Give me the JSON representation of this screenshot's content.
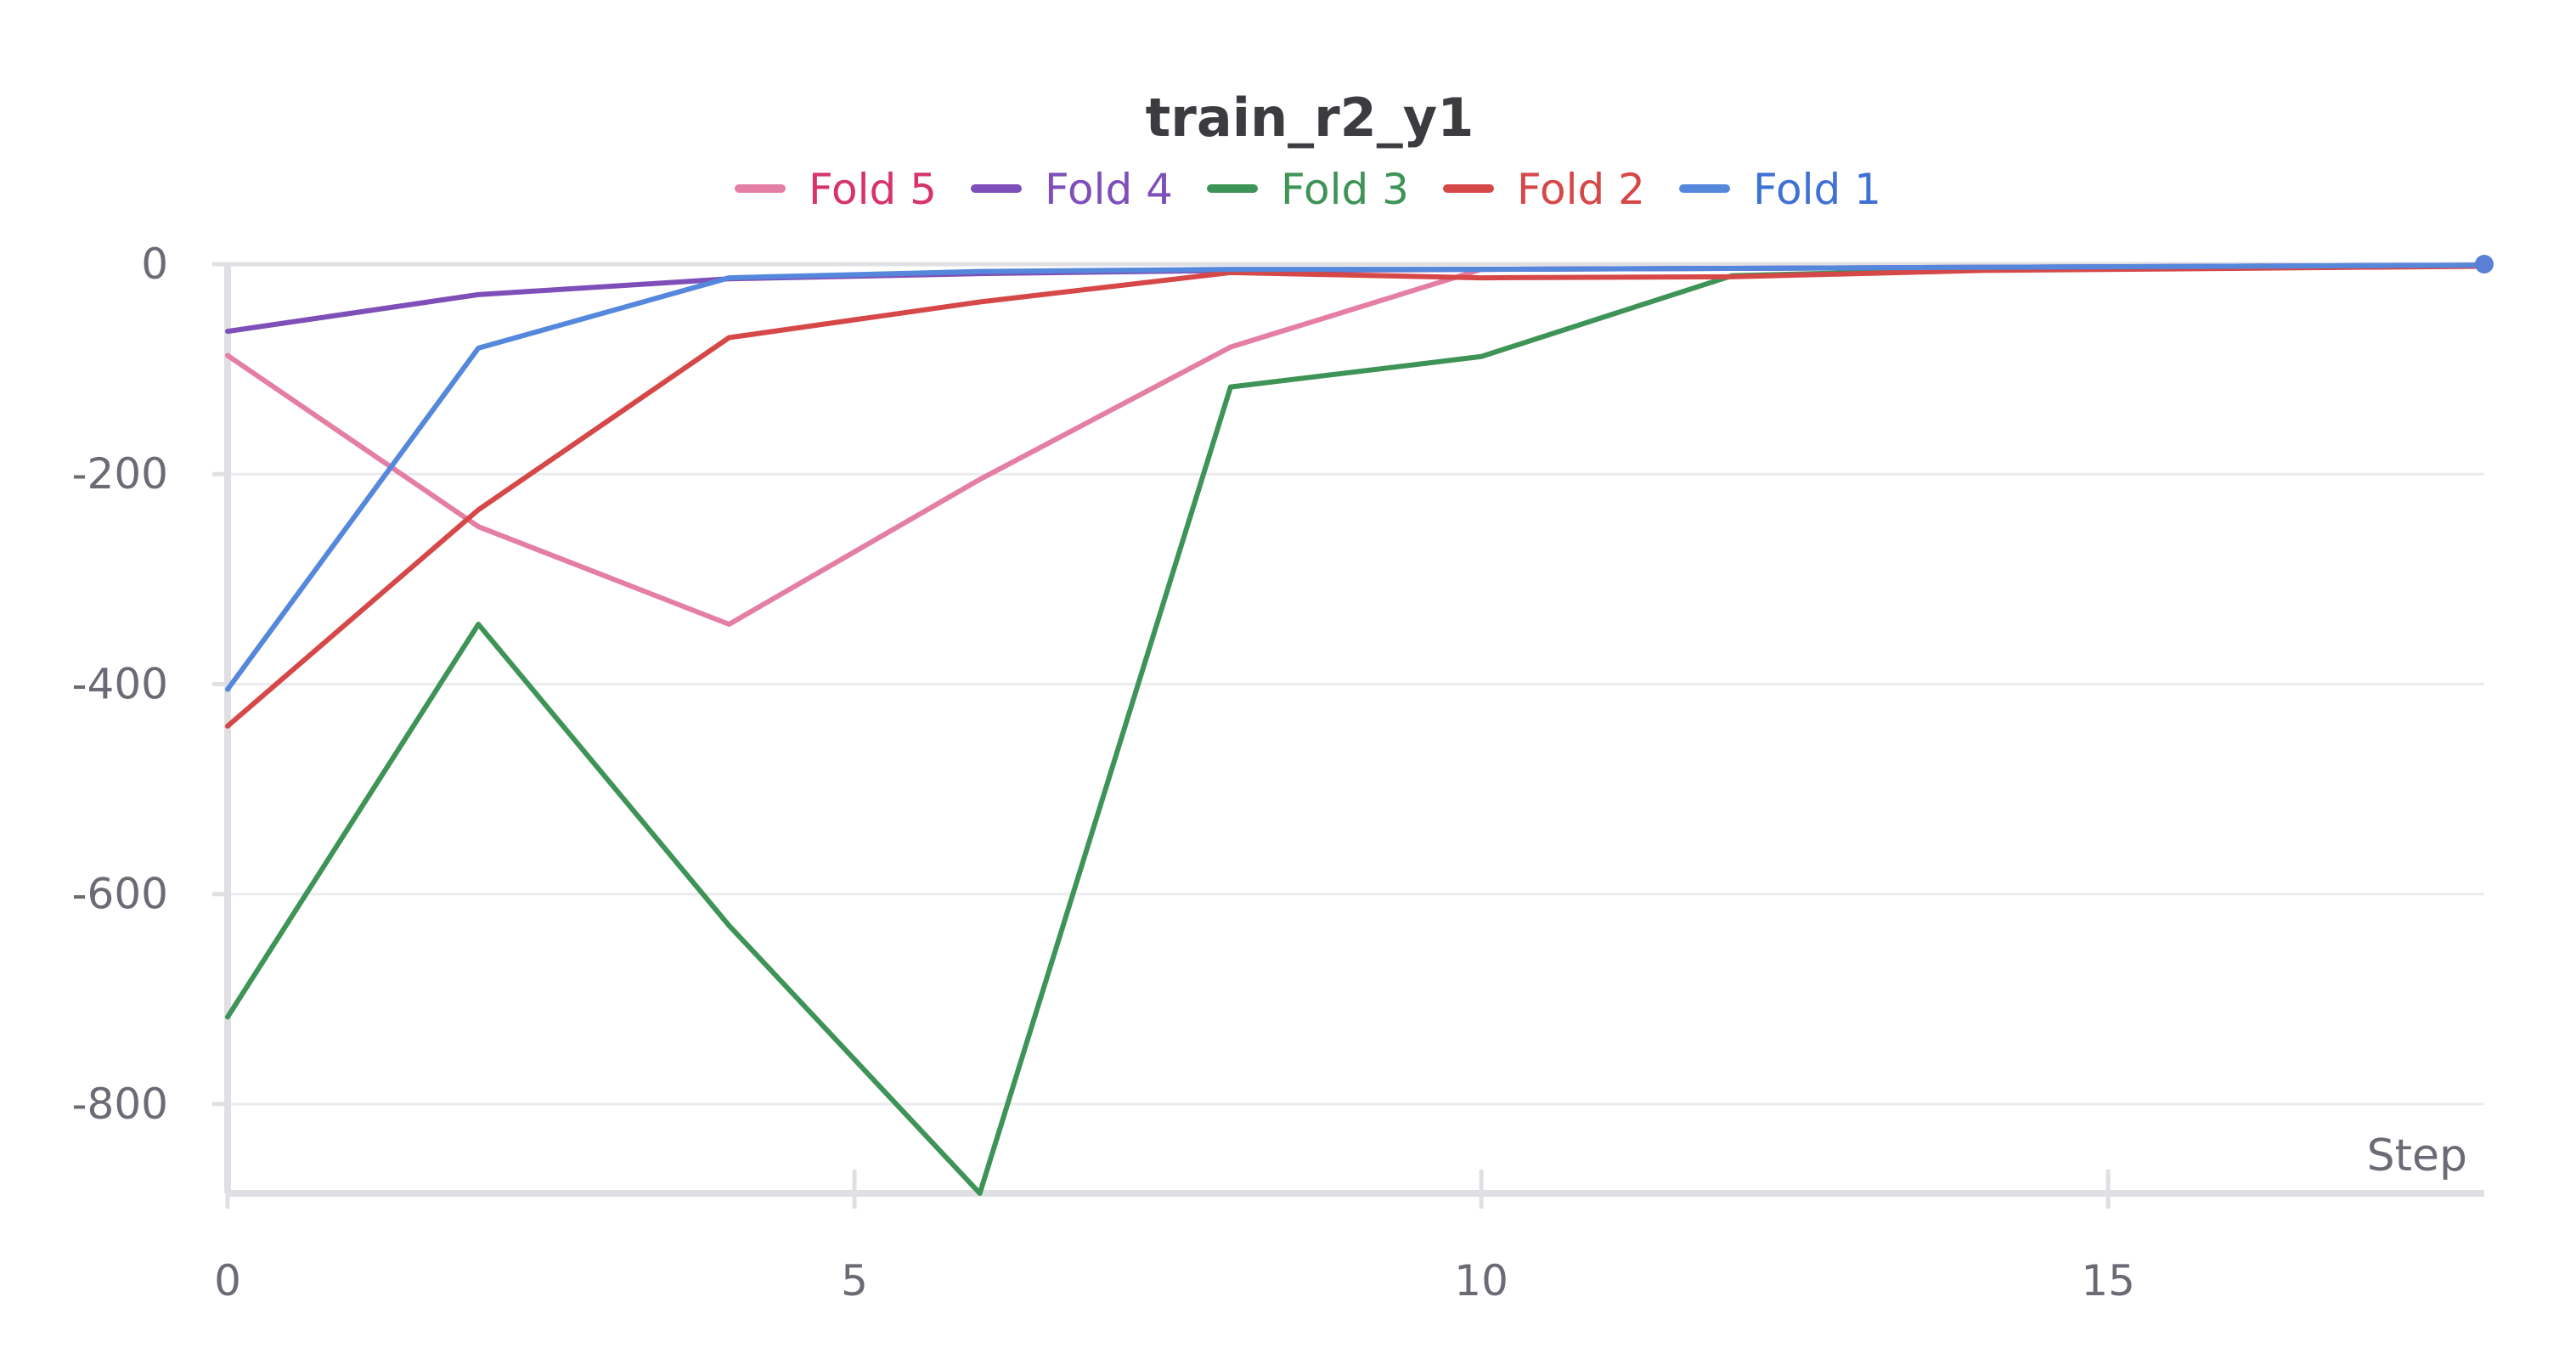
{
  "chart_data": {
    "type": "line",
    "title": "train_r2_y1",
    "xlabel": "Step",
    "ylabel": "",
    "xlim": [
      0,
      18
    ],
    "ylim": [
      -885,
      0
    ],
    "x_ticks": [
      0,
      5,
      10,
      15
    ],
    "y_ticks": [
      0,
      -200,
      -400,
      -600,
      -800
    ],
    "grid": true,
    "legend_position": "top-center",
    "series": [
      {
        "name": "Fold 5",
        "color": "#e47ea4",
        "label_color": "#d6336c",
        "x": [
          0,
          2,
          4,
          6,
          8,
          10,
          12,
          14,
          16,
          18
        ],
        "y": [
          -87,
          -250,
          -343,
          -205,
          -79,
          -5,
          -4,
          -3,
          -2,
          -1
        ]
      },
      {
        "name": "Fold 4",
        "color": "#7e4fb8",
        "label_color": "#7e4fb8",
        "x": [
          0,
          2,
          4,
          6,
          8,
          10,
          12,
          14,
          16,
          18
        ],
        "y": [
          -64,
          -29,
          -14,
          -9,
          -6,
          -5,
          -4,
          -3,
          -2,
          -1
        ]
      },
      {
        "name": "Fold 3",
        "color": "#3e9356",
        "label_color": "#3e9356",
        "x": [
          0,
          2,
          4,
          6,
          8,
          10,
          12,
          14,
          16,
          18
        ],
        "y": [
          -717,
          -343,
          -630,
          -885,
          -117,
          -88,
          -11,
          -5,
          -3,
          -1
        ]
      },
      {
        "name": "Fold 2",
        "color": "#d64848",
        "label_color": "#d64848",
        "x": [
          0,
          2,
          4,
          6,
          8,
          10,
          12,
          14,
          16,
          18
        ],
        "y": [
          -440,
          -234,
          -70,
          -36,
          -8,
          -13,
          -12,
          -6,
          -4,
          -2
        ]
      },
      {
        "name": "Fold 1",
        "color": "#5587dc",
        "label_color": "#3f70d4",
        "x": [
          0,
          2,
          4,
          6,
          8,
          10,
          12,
          14,
          16,
          18
        ],
        "y": [
          -405,
          -80,
          -13,
          -7,
          -5,
          -5,
          -4,
          -3,
          -2,
          -1
        ]
      }
    ]
  }
}
